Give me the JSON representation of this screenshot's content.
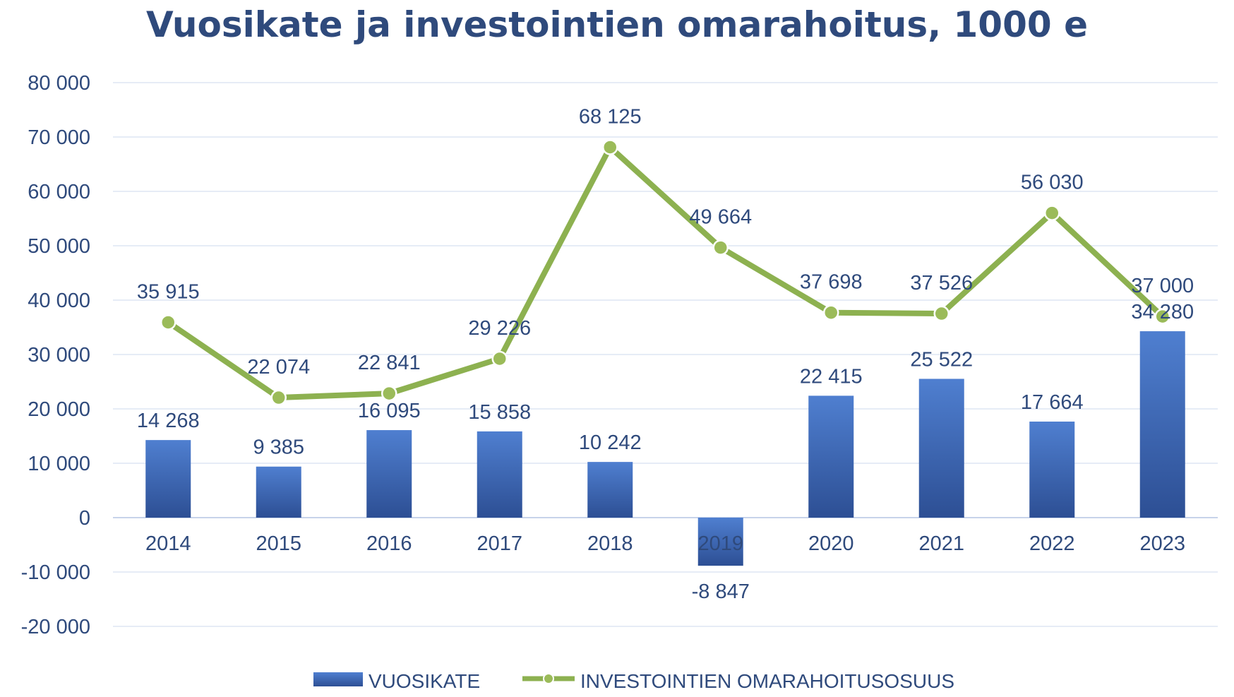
{
  "chart_data": {
    "type": "bar",
    "title": "Vuosikate ja investointien omarahoitus, 1000 e",
    "categories": [
      "2014",
      "2015",
      "2016",
      "2017",
      "2018",
      "2019",
      "2020",
      "2021",
      "2022",
      "2023"
    ],
    "series": [
      {
        "name": "VUOSIKATE",
        "type": "bar",
        "color": "#4472c4",
        "values": [
          14268,
          9385,
          16095,
          15858,
          10242,
          -8847,
          22415,
          25522,
          17664,
          34280
        ],
        "labels": [
          "14 268",
          "9 385",
          "16 095",
          "15 858",
          "10 242",
          "-8 847",
          "22 415",
          "25 522",
          "17 664",
          "34 280"
        ]
      },
      {
        "name": "INVESTOINTIEN OMARAHOITUSOSUUS",
        "type": "line",
        "color": "#8db150",
        "values": [
          35915,
          22074,
          22841,
          29226,
          68125,
          49664,
          37698,
          37526,
          56030,
          37000
        ],
        "labels": [
          "35 915",
          "22 074",
          "22 841",
          "29 226",
          "68 125",
          "49 664",
          "37 698",
          "37 526",
          "56 030",
          "37 000"
        ]
      }
    ],
    "yticks": [
      80000,
      70000,
      60000,
      50000,
      40000,
      30000,
      20000,
      10000,
      0,
      -10000,
      -20000
    ],
    "ytick_labels": [
      "80 000",
      "70 000",
      "60 000",
      "50 000",
      "40 000",
      "30 000",
      "20 000",
      "10 000",
      "0",
      "-10 000",
      "-20 000"
    ],
    "ylim": [
      -20000,
      80000
    ],
    "grid": true,
    "legend": "bottom"
  }
}
